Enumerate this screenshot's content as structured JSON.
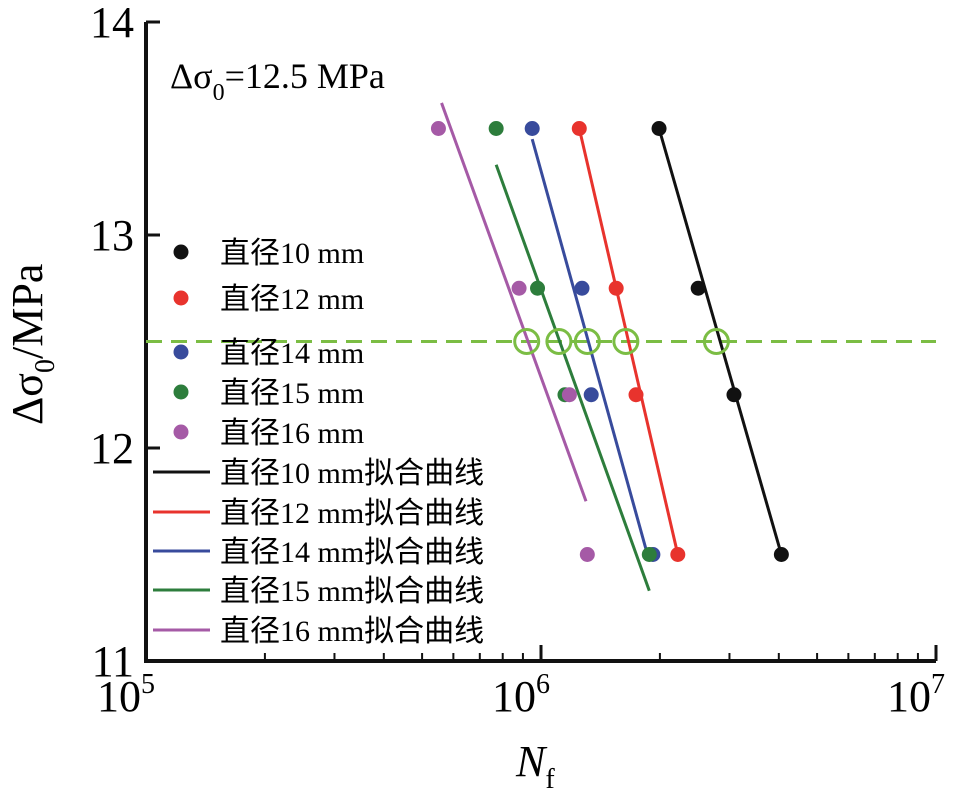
{
  "chart_data": {
    "type": "scatter",
    "title": "",
    "annotation": {
      "prefix": "Δσ",
      "sub": "0",
      "suffix": "=12.5 MPa"
    },
    "xlabel": {
      "main": "N",
      "sub": "f"
    },
    "ylabel": {
      "prefix": "Δσ",
      "sub": "0",
      "suffix": "/MPa"
    },
    "x_scale": "log",
    "xlim": [
      100000,
      10000000
    ],
    "ylim": [
      11,
      14
    ],
    "x_ticks": [
      {
        "value": 100000,
        "base": "10",
        "exp": "5"
      },
      {
        "value": 1000000,
        "base": "10",
        "exp": "6"
      },
      {
        "value": 10000000,
        "base": "10",
        "exp": "7"
      }
    ],
    "y_ticks": [
      {
        "value": 11,
        "label": "11"
      },
      {
        "value": 12,
        "label": "12"
      },
      {
        "value": 13,
        "label": "13"
      },
      {
        "value": 14,
        "label": "14"
      }
    ],
    "grid": false,
    "legend_position": "left",
    "reference_line": {
      "y": 12.5,
      "color": "#7bbd44",
      "style": "dashed"
    },
    "intersections": [
      {
        "x": 920000,
        "y": 12.5
      },
      {
        "x": 1110000,
        "y": 12.5
      },
      {
        "x": 1310000,
        "y": 12.5
      },
      {
        "x": 1640000,
        "y": 12.5
      },
      {
        "x": 2780000,
        "y": 12.5
      }
    ],
    "series": [
      {
        "name": "直径10 mm",
        "fit_name": "直径10 mm拟合曲线",
        "color": "#111111",
        "points": [
          [
            1990000,
            13.5
          ],
          [
            2500000,
            12.75
          ],
          [
            3080000,
            12.25
          ],
          [
            4060000,
            11.5
          ]
        ],
        "fit": [
          [
            1990000,
            13.5
          ],
          [
            4060000,
            11.5
          ]
        ]
      },
      {
        "name": "直径12 mm",
        "fit_name": "直径12 mm拟合曲线",
        "color": "#e8332d",
        "points": [
          [
            1250000,
            13.5
          ],
          [
            1550000,
            12.75
          ],
          [
            1740000,
            12.25
          ],
          [
            2220000,
            11.5
          ]
        ],
        "fit": [
          [
            1250000,
            13.5
          ],
          [
            2220000,
            11.5
          ]
        ]
      },
      {
        "name": "直径14 mm",
        "fit_name": "直径14 mm拟合曲线",
        "color": "#384b9c",
        "points": [
          [
            950000,
            13.5
          ],
          [
            1270000,
            12.75
          ],
          [
            1340000,
            12.25
          ],
          [
            1920000,
            11.5
          ]
        ],
        "fit": [
          [
            950000,
            13.45
          ],
          [
            1860000,
            11.5
          ]
        ]
      },
      {
        "name": "直径15 mm",
        "fit_name": "直径15 mm拟合曲线",
        "color": "#2d7d3c",
        "points": [
          [
            770000,
            13.5
          ],
          [
            980000,
            12.75
          ],
          [
            1150000,
            12.25
          ],
          [
            1880000,
            11.5
          ]
        ],
        "fit": [
          [
            770000,
            13.33
          ],
          [
            1880000,
            11.33
          ]
        ]
      },
      {
        "name": "直径16 mm",
        "fit_name": "直径16 mm拟合曲线",
        "color": "#a55aa6",
        "points": [
          [
            550000,
            13.5
          ],
          [
            880000,
            12.75
          ],
          [
            1180000,
            12.25
          ],
          [
            1310000,
            11.5
          ]
        ],
        "fit": [
          [
            560000,
            13.62
          ],
          [
            1300000,
            11.75
          ]
        ]
      }
    ]
  }
}
